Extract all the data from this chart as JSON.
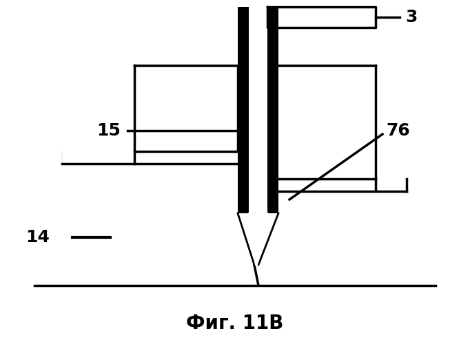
{
  "title": "Фиг. 11В",
  "label_3": "3",
  "label_14": "14",
  "label_15": "15",
  "label_76": "76",
  "bg_color": "#ffffff",
  "line_color": "#000000",
  "fill_color": "#000000",
  "lw_thick": 2.5,
  "lw_thin": 1.8,
  "lw_bar": 14
}
